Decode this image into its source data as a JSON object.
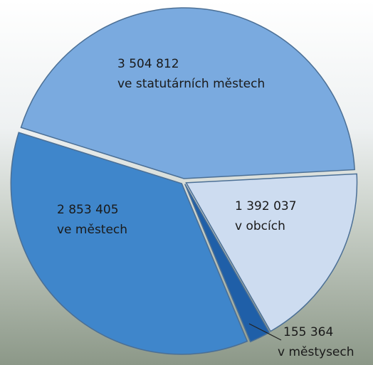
{
  "chart_data": {
    "type": "pie",
    "categories": [
      "ve statutárních městech",
      "v obcích",
      "v městysech",
      "ve městech"
    ],
    "values": [
      3504812,
      1392037,
      155364,
      2853405
    ],
    "value_labels": [
      "3 504 812",
      "1 392 037",
      "155 364",
      "2 853 405"
    ],
    "colors": [
      "#7aaadf",
      "#cddcf0",
      "#1f5fa8",
      "#3f86cb"
    ]
  }
}
